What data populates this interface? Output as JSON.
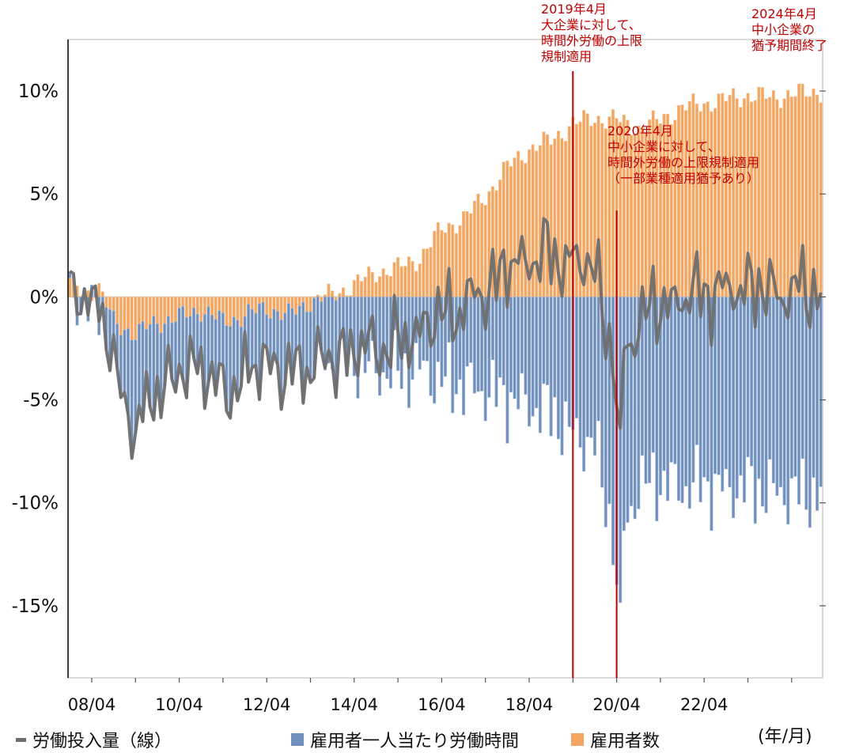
{
  "chart_data": {
    "type": "bar",
    "stacked": true,
    "xlabel": "(年/月)",
    "ylim": [
      -18.5,
      12.5
    ],
    "y_ticks": [
      10,
      5,
      0,
      -5,
      -10,
      -15
    ],
    "y_tick_labels": [
      "10%",
      "5%",
      "0%",
      "-5%",
      "-10%",
      "-15%"
    ],
    "x_ticks": [
      "08/04",
      "10/04",
      "12/04",
      "14/04",
      "16/04",
      "18/04",
      "20/04",
      "22/04"
    ],
    "x_start": "2007-10",
    "x_end": "2024-12",
    "colors": {
      "employees": "#f4a661",
      "hours": "#6f8fbd",
      "labor_input": "#6e6e6e",
      "annotation": "#c00000"
    },
    "series": [
      {
        "name": "雇用者数",
        "key": "employees",
        "kind": "bar",
        "breakpoints": [
          [
            "2007-10",
            0.7
          ],
          [
            "2008-02",
            0.2
          ],
          [
            "2008-06",
            0.4
          ],
          [
            "2008-10",
            -1.2
          ],
          [
            "2009-04",
            -1.8
          ],
          [
            "2009-10",
            -1.2
          ],
          [
            "2010-04",
            -1.0
          ],
          [
            "2010-10",
            -0.6
          ],
          [
            "2011-04",
            -1.2
          ],
          [
            "2011-10",
            -0.9
          ],
          [
            "2012-04",
            -0.5
          ],
          [
            "2012-10",
            -0.9
          ],
          [
            "2013-04",
            -0.2
          ],
          [
            "2013-10",
            0.1
          ],
          [
            "2014-04",
            0.6
          ],
          [
            "2014-10",
            1.2
          ],
          [
            "2015-04",
            1.4
          ],
          [
            "2015-10",
            1.9
          ],
          [
            "2016-04",
            3.3
          ],
          [
            "2016-10",
            3.8
          ],
          [
            "2017-04",
            4.9
          ],
          [
            "2017-10",
            6.3
          ],
          [
            "2018-04",
            7.2
          ],
          [
            "2018-10",
            7.6
          ],
          [
            "2019-04",
            8.4
          ],
          [
            "2019-10",
            8.7
          ],
          [
            "2020-04",
            8.6
          ],
          [
            "2020-10",
            8.2
          ],
          [
            "2021-04",
            8.6
          ],
          [
            "2021-10",
            9.2
          ],
          [
            "2022-04",
            9.4
          ],
          [
            "2022-10",
            9.6
          ],
          [
            "2023-04",
            9.8
          ],
          [
            "2023-10",
            9.7
          ],
          [
            "2024-12",
            10.0
          ]
        ]
      },
      {
        "name": "雇用者一人当たり労働時間",
        "key": "hours",
        "kind": "bar",
        "breakpoints": [
          [
            "2007-10",
            -0.6
          ],
          [
            "2008-02",
            -0.2
          ],
          [
            "2008-06",
            -0.7
          ],
          [
            "2008-10",
            -2.2
          ],
          [
            "2009-04",
            -4.8
          ],
          [
            "2009-10",
            -3.2
          ],
          [
            "2010-04",
            -2.8
          ],
          [
            "2010-10",
            -2.6
          ],
          [
            "2011-04",
            -3.6
          ],
          [
            "2011-10",
            -2.9
          ],
          [
            "2012-04",
            -2.6
          ],
          [
            "2012-10",
            -3.0
          ],
          [
            "2013-04",
            -3.0
          ],
          [
            "2013-10",
            -3.2
          ],
          [
            "2014-04",
            -3.1
          ],
          [
            "2014-10",
            -3.6
          ],
          [
            "2015-04",
            -3.7
          ],
          [
            "2015-10",
            -3.5
          ],
          [
            "2016-04",
            -4.1
          ],
          [
            "2016-10",
            -4.3
          ],
          [
            "2017-04",
            -4.6
          ],
          [
            "2017-10",
            -4.9
          ],
          [
            "2018-04",
            -5.3
          ],
          [
            "2018-10",
            -5.6
          ],
          [
            "2019-04",
            -6.7
          ],
          [
            "2019-10",
            -7.2
          ],
          [
            "2020-04",
            -12.5
          ],
          [
            "2020-10",
            -9.2
          ],
          [
            "2021-04",
            -9.0
          ],
          [
            "2021-10",
            -9.3
          ],
          [
            "2022-04",
            -9.1
          ],
          [
            "2022-10",
            -9.4
          ],
          [
            "2023-04",
            -9.2
          ],
          [
            "2023-10",
            -9.5
          ],
          [
            "2024-12",
            -9.6
          ]
        ]
      },
      {
        "name": "労働投入量（線）",
        "key": "labor_input",
        "kind": "line"
      }
    ],
    "annotations": [
      {
        "date": "2019-04",
        "lines": [
          "2019年4月",
          "大企業に対して、",
          "時間外労働の上限",
          "規制適用"
        ]
      },
      {
        "date": "2020-04",
        "lines": [
          "2020年4月",
          "中小企業に対して、",
          "時間外労働の上限規制適用",
          "（一部業種適用猶予あり）"
        ]
      },
      {
        "date": "2024-04",
        "lines": [
          "2024年4月",
          "中小企業の",
          "猶予期間終了"
        ]
      }
    ]
  },
  "legend": {
    "labor_input": "労働投入量（線）",
    "hours": "雇用者一人当たり労働時間",
    "employees": "雇用者数",
    "unit": "(年/月)"
  }
}
